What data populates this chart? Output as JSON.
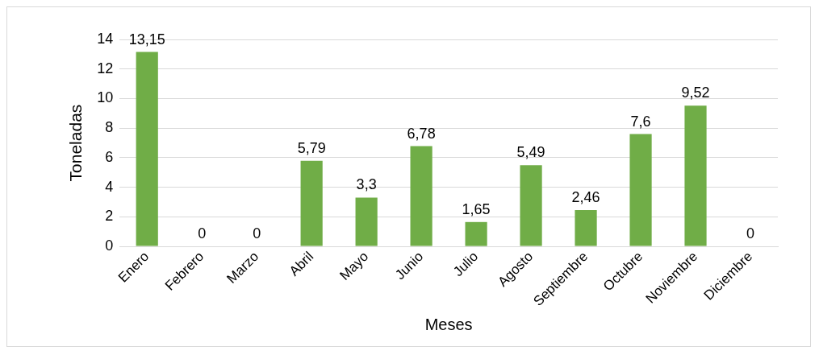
{
  "chart_data": {
    "type": "bar",
    "xlabel": "Meses",
    "ylabel": "Toneladas",
    "categories": [
      "Enero",
      "Febrero",
      "Marzo",
      "Abril",
      "Mayo",
      "Junio",
      "Julio",
      "Agosto",
      "Septiembre",
      "Octubre",
      "Noviembre",
      "Diciembre"
    ],
    "values": [
      13.15,
      0,
      0,
      5.79,
      3.3,
      6.78,
      1.65,
      5.49,
      2.46,
      7.6,
      9.52,
      0
    ],
    "value_labels": [
      "13,15",
      "0",
      "0",
      "5,79",
      "3,3",
      "6,78",
      "1,65",
      "5,49",
      "2,46",
      "7,6",
      "9,52",
      "0"
    ],
    "color": "#70ad47",
    "ylim": [
      0,
      14
    ],
    "yticks": [
      0,
      2,
      4,
      6,
      8,
      10,
      12,
      14
    ],
    "grid": "y",
    "legend": false
  }
}
